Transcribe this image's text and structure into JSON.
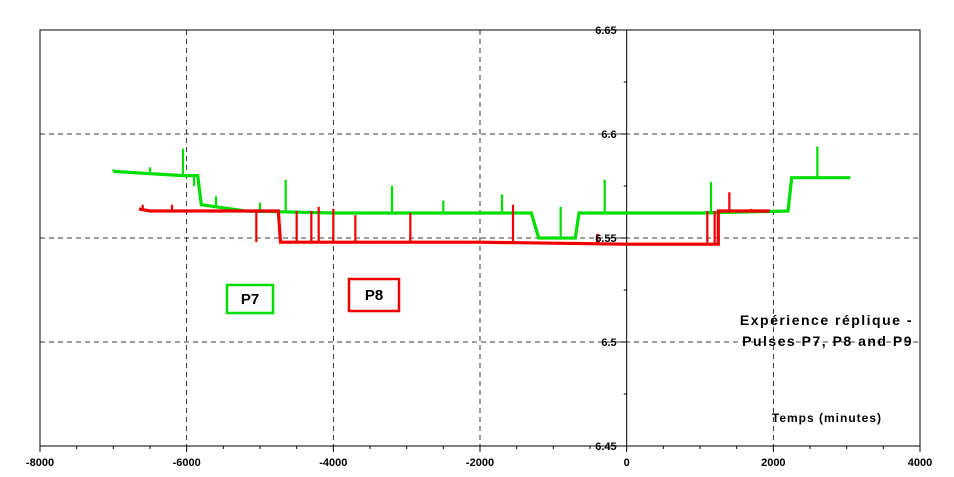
{
  "chart_data": {
    "type": "line",
    "title_lines": [
      "Expérience réplique -",
      "Pulses P7, P8 and P9"
    ],
    "xlabel": "Temps (minutes)",
    "ylabel": "",
    "xlim": [
      -8000,
      4000
    ],
    "ylim": [
      6.45,
      6.65
    ],
    "x_ticks": [
      -8000,
      -6000,
      -4000,
      -2000,
      0,
      2000,
      4000
    ],
    "y_ticks": [
      6.45,
      6.5,
      6.55,
      6.6,
      6.65
    ],
    "x_tick_labels": [
      "-8000",
      "-6000",
      "-4000",
      "-2000",
      "0",
      "2000",
      "4000"
    ],
    "y_tick_labels": [
      "6.45",
      "6.5",
      "6.55",
      "6.6",
      "6.65"
    ],
    "x_minor_step": 500,
    "y_minor_step": 0.025,
    "grid": true,
    "legend_boxes": [
      {
        "label": "P7",
        "color": "#00dd00"
      },
      {
        "label": "P8",
        "color": "#ee0000"
      }
    ],
    "series": [
      {
        "name": "P7",
        "color": "#00dd00",
        "points": [
          [
            -7000,
            6.582
          ],
          [
            -6050,
            6.58
          ],
          [
            -5850,
            6.58
          ],
          [
            -5800,
            6.566
          ],
          [
            -5200,
            6.563
          ],
          [
            -4000,
            6.562
          ],
          [
            -2000,
            6.562
          ],
          [
            -1300,
            6.562
          ],
          [
            -1200,
            6.55
          ],
          [
            -700,
            6.55
          ],
          [
            -650,
            6.562
          ],
          [
            0,
            6.562
          ],
          [
            1000,
            6.562
          ],
          [
            2200,
            6.563
          ],
          [
            2250,
            6.579
          ],
          [
            3050,
            6.579
          ]
        ],
        "spikes": [
          [
            -6050,
            6.593
          ],
          [
            -5900,
            6.575
          ],
          [
            -5600,
            6.57
          ],
          [
            -4650,
            6.578
          ],
          [
            -3200,
            6.575
          ],
          [
            -1700,
            6.571
          ],
          [
            -300,
            6.578
          ],
          [
            1150,
            6.577
          ],
          [
            2600,
            6.594
          ],
          [
            -7000,
            6.583
          ],
          [
            -6500,
            6.584
          ],
          [
            -5000,
            6.567
          ],
          [
            -2500,
            6.568
          ],
          [
            -900,
            6.565
          ]
        ]
      },
      {
        "name": "P8",
        "color": "#ee0000",
        "points": [
          [
            -6650,
            6.564
          ],
          [
            -6500,
            6.563
          ],
          [
            -5000,
            6.563
          ],
          [
            -4750,
            6.563
          ],
          [
            -4720,
            6.548
          ],
          [
            -3000,
            6.548
          ],
          [
            -2000,
            6.548
          ],
          [
            0,
            6.547
          ],
          [
            1100,
            6.547
          ],
          [
            1250,
            6.547
          ],
          [
            1250,
            6.563
          ],
          [
            1950,
            6.563
          ]
        ],
        "spikes": [
          [
            -5050,
            6.548
          ],
          [
            -5000,
            6.563
          ],
          [
            -4750,
            6.563
          ],
          [
            -4500,
            6.563
          ],
          [
            -4300,
            6.563
          ],
          [
            -4200,
            6.565
          ],
          [
            -4000,
            6.564
          ],
          [
            -3700,
            6.561
          ],
          [
            -2950,
            6.562
          ],
          [
            -1550,
            6.566
          ],
          [
            -400,
            6.552
          ],
          [
            1100,
            6.563
          ],
          [
            1200,
            6.563
          ],
          [
            1400,
            6.572
          ],
          [
            1700,
            6.564
          ],
          [
            -6600,
            6.566
          ],
          [
            -6200,
            6.566
          ]
        ]
      }
    ]
  }
}
